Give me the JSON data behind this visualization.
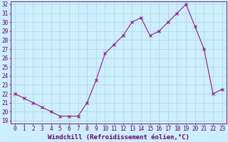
{
  "x": [
    0,
    1,
    2,
    3,
    4,
    5,
    6,
    7,
    8,
    9,
    10,
    11,
    12,
    13,
    14,
    15,
    16,
    17,
    18,
    19,
    20,
    21,
    22,
    23
  ],
  "y": [
    22,
    21.5,
    21,
    20.5,
    20,
    19.5,
    19.5,
    19.5,
    21,
    23.5,
    26.5,
    27.5,
    28.5,
    30,
    30.5,
    28.5,
    29,
    30,
    31,
    32,
    29.5,
    27,
    22,
    22.5
  ],
  "line_color": "#8b1a8b",
  "marker": "x",
  "marker_size": 3,
  "bg_color": "#cceeff",
  "grid_color": "#aacccc",
  "xlabel": "Windchill (Refroidissement éolien,°C)",
  "ylabel": "",
  "ylim_min": 19,
  "ylim_max": 32,
  "xlim_min": 0,
  "xlim_max": 23,
  "yticks": [
    19,
    20,
    21,
    22,
    23,
    24,
    25,
    26,
    27,
    28,
    29,
    30,
    31,
    32
  ],
  "xticks": [
    0,
    1,
    2,
    3,
    4,
    5,
    6,
    7,
    8,
    9,
    10,
    11,
    12,
    13,
    14,
    15,
    16,
    17,
    18,
    19,
    20,
    21,
    22,
    23
  ],
  "tick_fontsize": 5.5,
  "xlabel_fontsize": 6.5,
  "text_color": "#660066"
}
